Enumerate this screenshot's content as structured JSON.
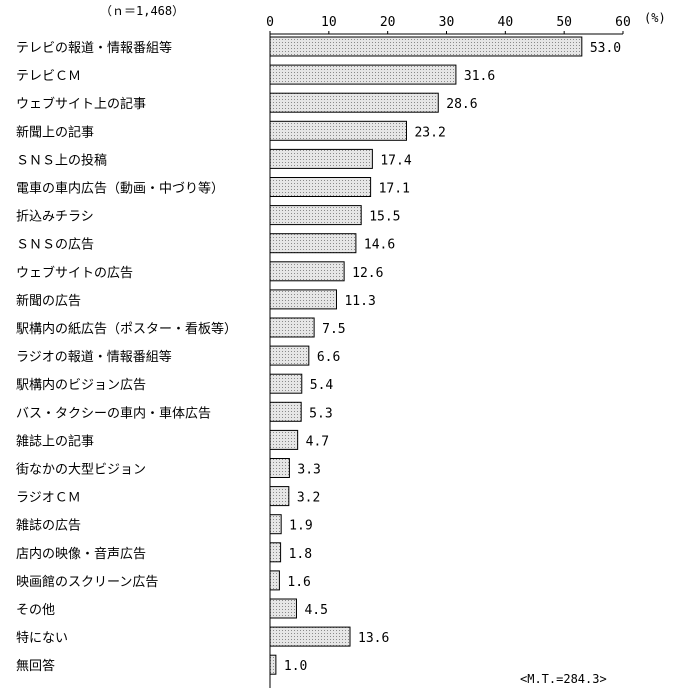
{
  "sample_label": "（ｎ＝1,468）",
  "unit_label": "(%)",
  "mt_label": "<M.T.=284.3>",
  "colors": {
    "bar_fill": "#e6e6e6",
    "bar_stroke": "#000000",
    "dot": "#8a8a8a"
  },
  "chart_data": {
    "type": "bar",
    "orientation": "horizontal",
    "xlim": [
      0,
      60
    ],
    "xticks": [
      0,
      10,
      20,
      30,
      40,
      50,
      60
    ],
    "grid": false,
    "categories": [
      "テレビの報道・情報番組等",
      "テレビＣＭ",
      "ウェブサイト上の記事",
      "新聞上の記事",
      "ＳＮＳ上の投稿",
      "電車の車内広告（動画・中づり等）",
      "折込みチラシ",
      "ＳＮＳの広告",
      "ウェブサイトの広告",
      "新聞の広告",
      "駅構内の紙広告（ポスター・看板等）",
      "ラジオの報道・情報番組等",
      "駅構内のビジョン広告",
      "バス・タクシーの車内・車体広告",
      "雑誌上の記事",
      "街なかの大型ビジョン",
      "ラジオＣＭ",
      "雑誌の広告",
      "店内の映像・音声広告",
      "映画館のスクリーン広告",
      "その他",
      "特にない",
      "無回答"
    ],
    "values": [
      53.0,
      31.6,
      28.6,
      23.2,
      17.4,
      17.1,
      15.5,
      14.6,
      12.6,
      11.3,
      7.5,
      6.6,
      5.4,
      5.3,
      4.7,
      3.3,
      3.2,
      1.9,
      1.8,
      1.6,
      4.5,
      13.6,
      1.0
    ],
    "value_labels": [
      "53.0",
      "31.6",
      "28.6",
      "23.2",
      "17.4",
      "17.1",
      "15.5",
      "14.6",
      "12.6",
      "11.3",
      "7.5",
      "6.6",
      "5.4",
      "5.3",
      "4.7",
      "3.3",
      "3.2",
      "1.9",
      "1.8",
      "1.6",
      "4.5",
      "13.6",
      "1.0"
    ]
  }
}
